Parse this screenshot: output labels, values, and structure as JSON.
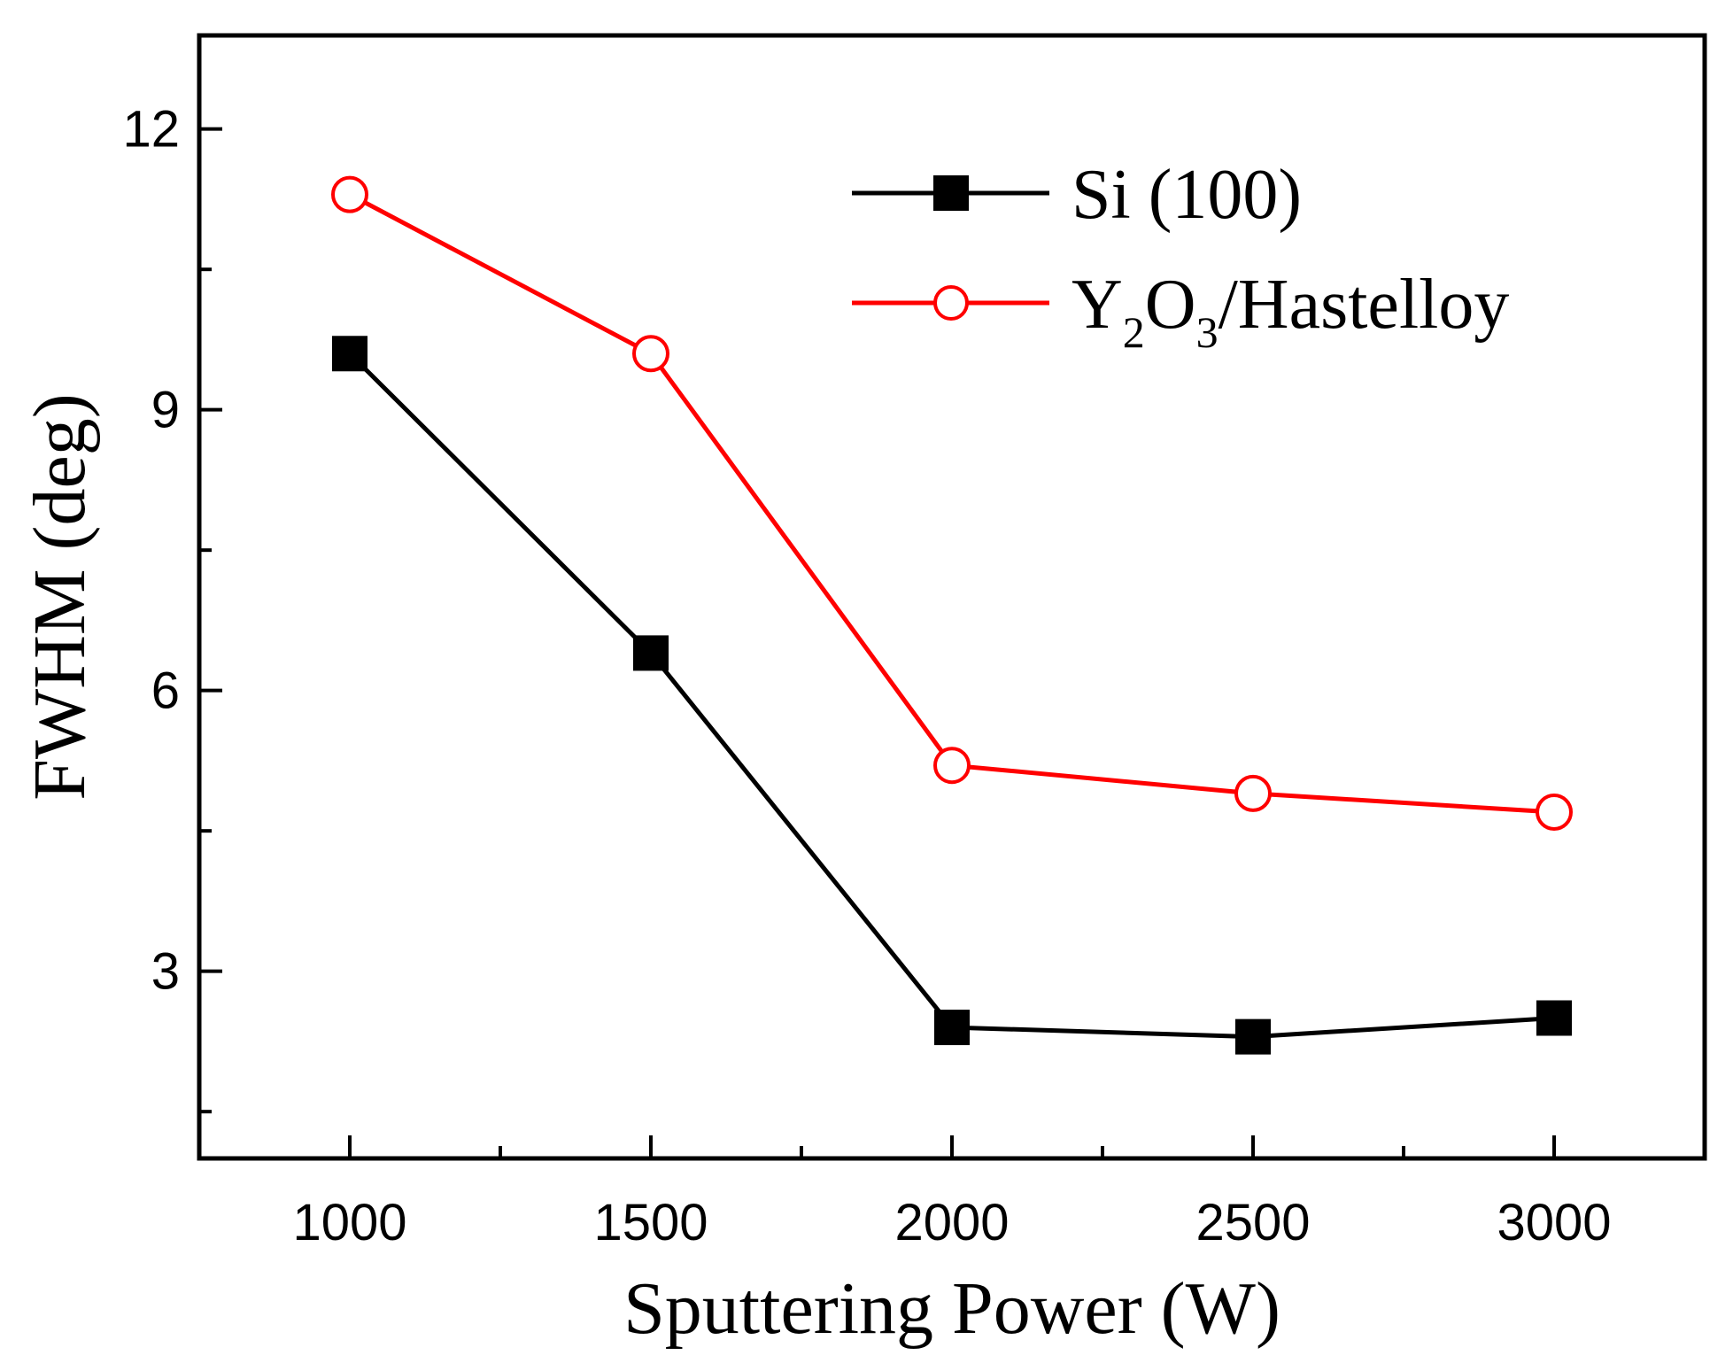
{
  "chart_data": {
    "type": "line",
    "xlabel": "Sputtering Power (W)",
    "ylabel": "FWHM (deg)",
    "xlim": [
      750,
      3250
    ],
    "ylim": [
      1.0,
      13.0
    ],
    "xticks": [
      1000,
      1500,
      2000,
      2500,
      3000
    ],
    "xtick_labels": [
      "1000",
      "1500",
      "2000",
      "2500",
      "3000"
    ],
    "yticks": [
      3,
      6,
      9,
      12
    ],
    "ytick_labels": [
      "3",
      "6",
      "9",
      "12"
    ],
    "x": [
      1000,
      1500,
      2000,
      2500,
      3000
    ],
    "series": [
      {
        "name": "Si (100)",
        "legend_label": "Si (100)",
        "color": "#000000",
        "marker": "filled-square",
        "values": [
          9.6,
          6.4,
          2.4,
          2.3,
          2.5
        ]
      },
      {
        "name": "Y2O3/Hastelloy",
        "legend_parts": [
          "Y",
          "2",
          "O",
          "3",
          "/Hastelloy"
        ],
        "color": "#ff0000",
        "marker": "open-circle",
        "values": [
          11.3,
          9.6,
          5.2,
          4.9,
          4.7
        ]
      }
    ],
    "legend_position": "top-right",
    "grid": false
  }
}
